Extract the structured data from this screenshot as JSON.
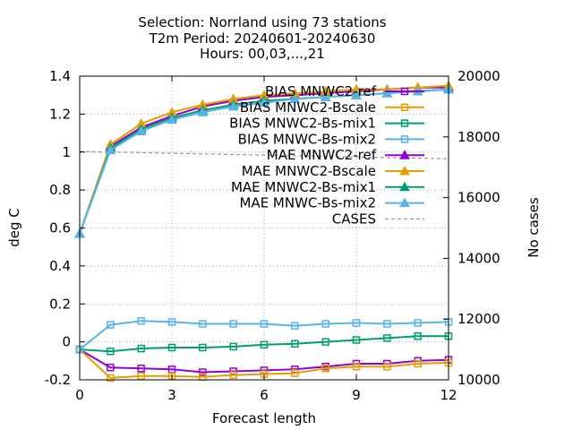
{
  "chart_data": {
    "type": "line",
    "title_lines": [
      "Selection: Norrland using    73 stations",
      "T2m   Period: 20240601-20240630",
      "Hours: 00,03,...,21"
    ],
    "xlabel": "Forecast length",
    "ylabel": "deg C",
    "y2label": "No cases",
    "xlim": [
      0,
      12
    ],
    "ylim": [
      -0.2,
      1.4
    ],
    "y2lim": [
      10000,
      20000
    ],
    "xticks": [
      "0",
      "3",
      "6",
      "9",
      "12"
    ],
    "yticks": [
      "-0.2",
      "0",
      "0.2",
      "0.4",
      "0.6",
      "0.8",
      "1",
      "1.2",
      "1.4"
    ],
    "y2ticks": [
      "10000",
      "12000",
      "14000",
      "16000",
      "18000",
      "20000"
    ],
    "grid": true,
    "legend_position": "top-right",
    "x": [
      0,
      1,
      2,
      3,
      4,
      5,
      6,
      7,
      8,
      9,
      10,
      11,
      12
    ],
    "series": [
      {
        "name": "BIAS MNWC2-ref",
        "color": "#9400d3",
        "marker": "square",
        "axis": "y",
        "values": [
          -0.04,
          -0.135,
          -0.14,
          -0.145,
          -0.16,
          -0.155,
          -0.15,
          -0.145,
          -0.13,
          -0.115,
          -0.115,
          -0.1,
          -0.095
        ]
      },
      {
        "name": "BIAS MNWC2-Bscale",
        "color": "#e69f00",
        "marker": "square",
        "axis": "y",
        "values": [
          -0.04,
          -0.19,
          -0.18,
          -0.18,
          -0.185,
          -0.175,
          -0.17,
          -0.165,
          -0.14,
          -0.13,
          -0.13,
          -0.115,
          -0.11
        ]
      },
      {
        "name": "BIAS MNWC2-Bs-mix1",
        "color": "#009e73",
        "marker": "square",
        "axis": "y",
        "values": [
          -0.04,
          -0.05,
          -0.035,
          -0.03,
          -0.03,
          -0.025,
          -0.015,
          -0.01,
          0.0,
          0.01,
          0.02,
          0.03,
          0.03
        ]
      },
      {
        "name": "BIAS MNWC-Bs-mix2",
        "color": "#56b4e9",
        "marker": "square",
        "axis": "y",
        "values": [
          -0.04,
          0.09,
          0.11,
          0.105,
          0.095,
          0.095,
          0.095,
          0.085,
          0.095,
          0.1,
          0.095,
          0.1,
          0.105
        ]
      },
      {
        "name": "MAE MNWC2-ref",
        "color": "#9400d3",
        "marker": "triangle",
        "axis": "y",
        "values": [
          0.57,
          1.03,
          1.13,
          1.19,
          1.24,
          1.27,
          1.29,
          1.3,
          1.31,
          1.32,
          1.33,
          1.34,
          1.34
        ]
      },
      {
        "name": "MAE MNWC2-Bscale",
        "color": "#e69f00",
        "marker": "triangle",
        "axis": "y",
        "values": [
          0.57,
          1.04,
          1.15,
          1.21,
          1.25,
          1.28,
          1.3,
          1.31,
          1.32,
          1.33,
          1.33,
          1.34,
          1.35
        ]
      },
      {
        "name": "MAE MNWC2-Bs-mix1",
        "color": "#009e73",
        "marker": "triangle",
        "axis": "y",
        "values": [
          0.57,
          1.02,
          1.12,
          1.18,
          1.22,
          1.25,
          1.27,
          1.28,
          1.29,
          1.3,
          1.31,
          1.32,
          1.33
        ]
      },
      {
        "name": "MAE MNWC-Bs-mix2",
        "color": "#56b4e9",
        "marker": "triangle",
        "axis": "y",
        "values": [
          0.57,
          1.01,
          1.11,
          1.17,
          1.21,
          1.24,
          1.26,
          1.28,
          1.29,
          1.3,
          1.31,
          1.32,
          1.33
        ]
      },
      {
        "name": "CASES",
        "color": "#999999",
        "marker": "none",
        "dashed": true,
        "axis": "y2",
        "values": [
          17520,
          17500,
          17480,
          17460,
          17440,
          17420,
          17400,
          17380,
          17360,
          17340,
          17320,
          17300,
          17280
        ]
      }
    ]
  }
}
